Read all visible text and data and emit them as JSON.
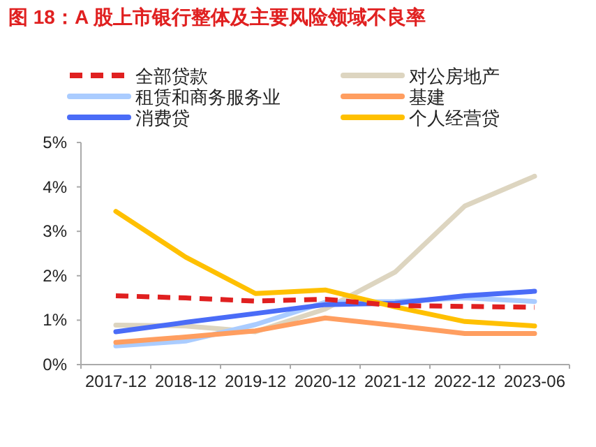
{
  "chart_data": {
    "type": "line",
    "title": "图 18：A 股上市银行整体及主要风险领域不良率",
    "categories": [
      "2017-12",
      "2018-12",
      "2019-12",
      "2020-12",
      "2021-12",
      "2022-12",
      "2023-06"
    ],
    "ylim": [
      0,
      5
    ],
    "yticks": [
      {
        "value": 0,
        "label": "0%"
      },
      {
        "value": 1,
        "label": "1%"
      },
      {
        "value": 2,
        "label": "2%"
      },
      {
        "value": 3,
        "label": "3%"
      },
      {
        "value": 4,
        "label": "4%"
      },
      {
        "value": 5,
        "label": "5%"
      }
    ],
    "grid": false,
    "legend": "top",
    "marker": "none",
    "series": [
      {
        "name": "对公房地产",
        "color": "#ddd5c0",
        "values": [
          0.89,
          0.87,
          0.74,
          1.25,
          2.08,
          3.57,
          4.24
        ]
      },
      {
        "name": "租赁和商务服务业",
        "color": "#aaccff",
        "values": [
          0.42,
          0.53,
          0.9,
          1.4,
          1.42,
          1.5,
          1.42
        ]
      },
      {
        "name": "基建",
        "color": "#ff9e60",
        "values": [
          0.5,
          0.62,
          0.76,
          1.05,
          0.88,
          0.7,
          0.7
        ]
      },
      {
        "name": "消费贷",
        "color": "#4a6cf7",
        "values": [
          0.74,
          0.95,
          1.15,
          1.35,
          1.38,
          1.55,
          1.65
        ]
      },
      {
        "name": "个人经营贷",
        "color": "#ffc000",
        "values": [
          3.45,
          2.42,
          1.6,
          1.68,
          1.3,
          0.97,
          0.87
        ]
      },
      {
        "name": "全部贷款",
        "color": "#e02020",
        "line_style": "dashed",
        "values": [
          1.55,
          1.5,
          1.43,
          1.47,
          1.33,
          1.31,
          1.29
        ]
      }
    ]
  }
}
